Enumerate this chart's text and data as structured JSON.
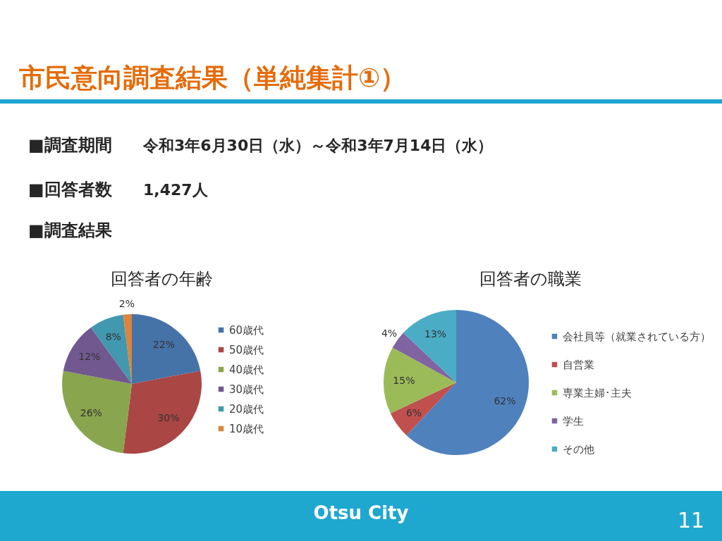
{
  "chart_data": [
    {
      "type": "other",
      "title": "市民意向調査結果（単純集計①）",
      "annotations": [
        "■調査期間",
        "令和3年6月30日（水）～令和3年7月14日（水）",
        "■回答者数",
        "1,427人",
        "■調査結果",
        "Otsu City",
        "11"
      ]
    },
    {
      "type": "pie",
      "title": "回答者の年齢",
      "categories": [
        "60歳代",
        "50歳代",
        "40歳代",
        "30歳代",
        "20歳代",
        "10歳代"
      ],
      "values": [
        22,
        30,
        26,
        12,
        8,
        2
      ],
      "value_labels": [
        "22%",
        "30%",
        "26%",
        "12%",
        "8%",
        "2%"
      ],
      "colors": [
        "#4572a7",
        "#aa4643",
        "#89a54e",
        "#71588f",
        "#4198af",
        "#db843d"
      ],
      "legend": "right"
    },
    {
      "type": "pie",
      "title": "回答者の職業",
      "categories": [
        "会社員等（就業されている方）",
        "自営業",
        "専業主婦･主夫",
        "学生",
        "その他"
      ],
      "values": [
        62,
        6,
        15,
        4,
        13
      ],
      "value_labels": [
        "62%",
        "6%",
        "15%",
        "4%",
        "13%"
      ],
      "colors": [
        "#4f81bd",
        "#c0504d",
        "#9bbb59",
        "#8064a2",
        "#4bacc6"
      ],
      "legend": "right"
    }
  ]
}
